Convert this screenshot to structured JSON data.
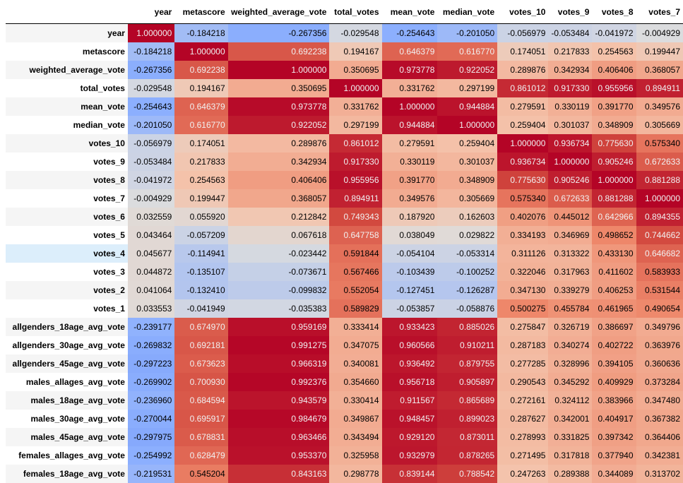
{
  "table": {
    "columns": [
      "year",
      "metascore",
      "weighted_average_vote",
      "total_votes",
      "mean_vote",
      "median_vote",
      "votes_10",
      "votes_9",
      "votes_8",
      "votes_7"
    ],
    "rows": [
      {
        "label": "year",
        "values": [
          "1.000000",
          "-0.184218",
          "-0.267356",
          "-0.029548",
          "-0.254643",
          "-0.201050",
          "-0.056979",
          "-0.053484",
          "-0.041972",
          "-0.004929"
        ]
      },
      {
        "label": "metascore",
        "values": [
          "-0.184218",
          "1.000000",
          "0.692238",
          "0.194167",
          "0.646379",
          "0.616770",
          "0.174051",
          "0.217833",
          "0.254563",
          "0.199447"
        ]
      },
      {
        "label": "weighted_average_vote",
        "values": [
          "-0.267356",
          "0.692238",
          "1.000000",
          "0.350695",
          "0.973778",
          "0.922052",
          "0.289876",
          "0.342934",
          "0.406406",
          "0.368057"
        ]
      },
      {
        "label": "total_votes",
        "values": [
          "-0.029548",
          "0.194167",
          "0.350695",
          "1.000000",
          "0.331762",
          "0.297199",
          "0.861012",
          "0.917330",
          "0.955956",
          "0.894911"
        ]
      },
      {
        "label": "mean_vote",
        "values": [
          "-0.254643",
          "0.646379",
          "0.973778",
          "0.331762",
          "1.000000",
          "0.944884",
          "0.279591",
          "0.330119",
          "0.391770",
          "0.349576"
        ]
      },
      {
        "label": "median_vote",
        "values": [
          "-0.201050",
          "0.616770",
          "0.922052",
          "0.297199",
          "0.944884",
          "1.000000",
          "0.259404",
          "0.301037",
          "0.348909",
          "0.305669"
        ]
      },
      {
        "label": "votes_10",
        "values": [
          "-0.056979",
          "0.174051",
          "0.289876",
          "0.861012",
          "0.279591",
          "0.259404",
          "1.000000",
          "0.936734",
          "0.775630",
          "0.575340"
        ]
      },
      {
        "label": "votes_9",
        "values": [
          "-0.053484",
          "0.217833",
          "0.342934",
          "0.917330",
          "0.330119",
          "0.301037",
          "0.936734",
          "1.000000",
          "0.905246",
          "0.672633"
        ]
      },
      {
        "label": "votes_8",
        "values": [
          "-0.041972",
          "0.254563",
          "0.406406",
          "0.955956",
          "0.391770",
          "0.348909",
          "0.775630",
          "0.905246",
          "1.000000",
          "0.881288"
        ]
      },
      {
        "label": "votes_7",
        "values": [
          "-0.004929",
          "0.199447",
          "0.368057",
          "0.894911",
          "0.349576",
          "0.305669",
          "0.575340",
          "0.672633",
          "0.881288",
          "1.000000"
        ]
      },
      {
        "label": "votes_6",
        "values": [
          "0.032559",
          "0.055920",
          "0.212842",
          "0.749343",
          "0.187920",
          "0.162603",
          "0.402076",
          "0.445012",
          "0.642966",
          "0.894355"
        ]
      },
      {
        "label": "votes_5",
        "values": [
          "0.043464",
          "-0.057209",
          "0.067618",
          "0.647758",
          "0.038049",
          "0.029822",
          "0.334193",
          "0.346969",
          "0.498652",
          "0.744662"
        ]
      },
      {
        "label": "votes_4",
        "values": [
          "0.045677",
          "-0.114941",
          "-0.023442",
          "0.591844",
          "-0.054104",
          "-0.053314",
          "0.311126",
          "0.313322",
          "0.433130",
          "0.646682"
        ]
      },
      {
        "label": "votes_3",
        "values": [
          "0.044872",
          "-0.135107",
          "-0.073671",
          "0.567466",
          "-0.103439",
          "-0.100252",
          "0.322046",
          "0.317963",
          "0.411602",
          "0.583933"
        ]
      },
      {
        "label": "votes_2",
        "values": [
          "0.041064",
          "-0.132410",
          "-0.099832",
          "0.552054",
          "-0.127451",
          "-0.126287",
          "0.347130",
          "0.339279",
          "0.406253",
          "0.531544"
        ]
      },
      {
        "label": "votes_1",
        "values": [
          "0.033553",
          "-0.041949",
          "-0.035383",
          "0.589829",
          "-0.053857",
          "-0.058876",
          "0.500275",
          "0.455784",
          "0.461965",
          "0.490654"
        ]
      },
      {
        "label": "allgenders_18age_avg_vote",
        "values": [
          "-0.239177",
          "0.674970",
          "0.959169",
          "0.333414",
          "0.933423",
          "0.885026",
          "0.275847",
          "0.326719",
          "0.386697",
          "0.349796"
        ]
      },
      {
        "label": "allgenders_30age_avg_vote",
        "values": [
          "-0.269832",
          "0.692181",
          "0.991275",
          "0.347075",
          "0.960566",
          "0.910211",
          "0.287183",
          "0.340274",
          "0.402722",
          "0.363976"
        ]
      },
      {
        "label": "allgenders_45age_avg_vote",
        "values": [
          "-0.297223",
          "0.673623",
          "0.966319",
          "0.340081",
          "0.936492",
          "0.879755",
          "0.277285",
          "0.328996",
          "0.394105",
          "0.360636"
        ]
      },
      {
        "label": "males_allages_avg_vote",
        "values": [
          "-0.269902",
          "0.700930",
          "0.992376",
          "0.354660",
          "0.956718",
          "0.905897",
          "0.290543",
          "0.345292",
          "0.409929",
          "0.373284"
        ]
      },
      {
        "label": "males_18age_avg_vote",
        "values": [
          "-0.236960",
          "0.684594",
          "0.943579",
          "0.330414",
          "0.911567",
          "0.865689",
          "0.272161",
          "0.324112",
          "0.383966",
          "0.347480"
        ]
      },
      {
        "label": "males_30age_avg_vote",
        "values": [
          "-0.270044",
          "0.695917",
          "0.984679",
          "0.349867",
          "0.948457",
          "0.899023",
          "0.287627",
          "0.342001",
          "0.404917",
          "0.367382"
        ]
      },
      {
        "label": "males_45age_avg_vote",
        "values": [
          "-0.297975",
          "0.678831",
          "0.963466",
          "0.343494",
          "0.929120",
          "0.873011",
          "0.278993",
          "0.331825",
          "0.397342",
          "0.364406"
        ]
      },
      {
        "label": "females_allages_avg_vote",
        "values": [
          "-0.254992",
          "0.628479",
          "0.953370",
          "0.325958",
          "0.932979",
          "0.878265",
          "0.271495",
          "0.317818",
          "0.377940",
          "0.342381"
        ]
      },
      {
        "label": "females_18age_avg_vote",
        "values": [
          "-0.219531",
          "0.545204",
          "0.843163",
          "0.298778",
          "0.839144",
          "0.788542",
          "0.247263",
          "0.289388",
          "0.344089",
          "0.313702"
        ]
      }
    ],
    "hover_row": 12
  }
}
